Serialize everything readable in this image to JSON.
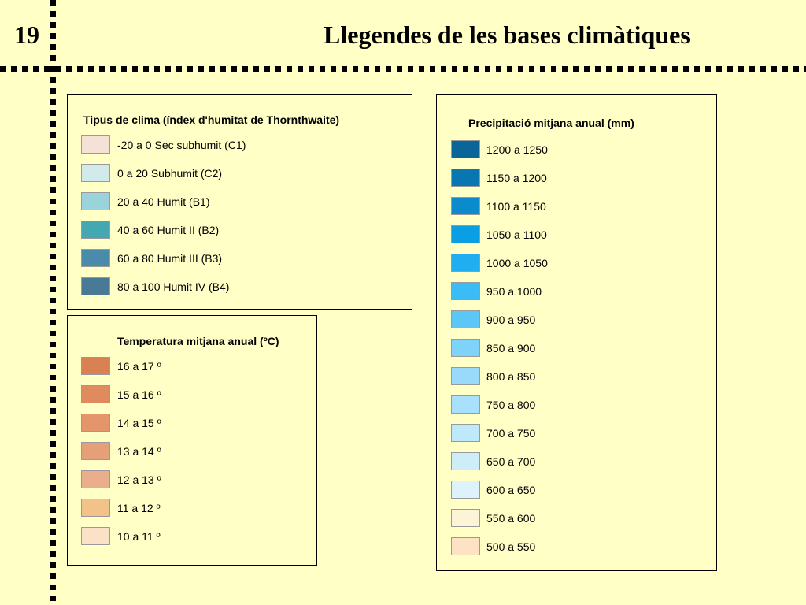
{
  "header": {
    "slide_number": "19",
    "title": "Llegendes de les bases climàtiques"
  },
  "climate": {
    "title": "Tipus de clima (índex d'humitat de Thornthwaite)",
    "items": [
      {
        "label": "-20 a 0 Sec subhumit (C1)",
        "color": "#f5e1d6"
      },
      {
        "label": "0 a 20 Subhumit (C2)",
        "color": "#d2eaea"
      },
      {
        "label": "20 a 40 Humit (B1)",
        "color": "#9bd3dc"
      },
      {
        "label": "40 a 60 Humit II (B2)",
        "color": "#43a8b2"
      },
      {
        "label": "60 a 80 Humit III (B3)",
        "color": "#4a8aaa"
      },
      {
        "label": "80 a 100 Humit IV (B4)",
        "color": "#487996"
      }
    ]
  },
  "temperature": {
    "title": "Temperatura mitjana anual (ºC)",
    "items": [
      {
        "label": "16 a 17 º",
        "color": "#d98152"
      },
      {
        "label": "15 a 16 º",
        "color": "#df8b5e"
      },
      {
        "label": "14 a 15 º",
        "color": "#e4966a"
      },
      {
        "label": "13 a 14 º",
        "color": "#e6a079"
      },
      {
        "label": "12 a 13 º",
        "color": "#eaae8d"
      },
      {
        "label": "11 a 12 º",
        "color": "#f3c28a"
      },
      {
        "label": "10 a 11 º",
        "color": "#fbe2c6"
      }
    ]
  },
  "precipitation": {
    "title": "Precipitació mitjana anual (mm)",
    "items": [
      {
        "label": "1200 a 1250",
        "color": "#0a6698"
      },
      {
        "label": "1150 a 1200",
        "color": "#0a76b1"
      },
      {
        "label": "1100 a 1150",
        "color": "#0b8acd"
      },
      {
        "label": "1050 a 1100",
        "color": "#0a9fe3"
      },
      {
        "label": "1000 a 1050",
        "color": "#20aef0"
      },
      {
        "label": "950 a 1000",
        "color": "#3bbcf6"
      },
      {
        "label": "900 a 950",
        "color": "#5cc7f7"
      },
      {
        "label": "850 a 900",
        "color": "#7fd2f9"
      },
      {
        "label": "800 a 850",
        "color": "#99dafa"
      },
      {
        "label": "750 a 800",
        "color": "#a9e0fb"
      },
      {
        "label": "700 a 750",
        "color": "#bfe8fb"
      },
      {
        "label": "650 a 700",
        "color": "#cdeef8"
      },
      {
        "label": "600 a 650",
        "color": "#ddf2fb"
      },
      {
        "label": "550 a 600",
        "color": "#fdf4d8"
      },
      {
        "label": "500 a 550",
        "color": "#fde3c3"
      }
    ]
  }
}
